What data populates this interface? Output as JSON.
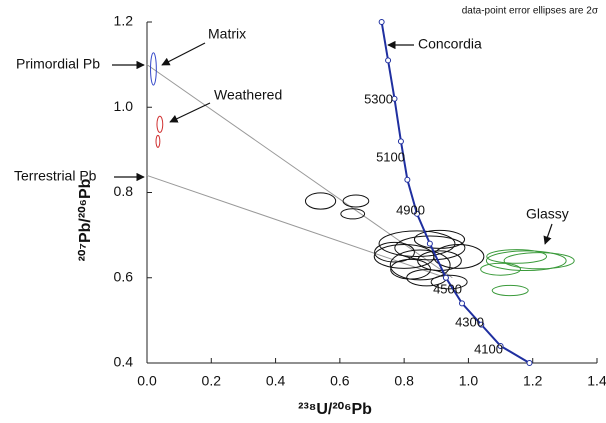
{
  "chart_data": {
    "type": "scatter",
    "note": "data-point error ellipses are 2σ",
    "x_label": "²³⁸U/²⁰⁶Pb",
    "y_label": "²⁰⁷Pb/²⁰⁶Pb",
    "xlim": [
      0,
      1.4
    ],
    "ylim": [
      0.4,
      1.2
    ],
    "xticks": [
      {
        "value": 0,
        "label": "0.0"
      },
      0.2,
      0.4,
      0.6,
      0.8,
      {
        "value": 1,
        "label": "1.0"
      },
      1.2,
      1.4
    ],
    "yticks": [
      0.4,
      0.6,
      0.8,
      {
        "value": 1,
        "label": "1.0"
      },
      1.2
    ],
    "concordia": {
      "name": "Concordia",
      "color": "#1f2fa0",
      "x": [
        0.73,
        0.75,
        0.77,
        0.79,
        0.81,
        0.84,
        0.88,
        0.93,
        0.98,
        1.04,
        1.1,
        1.19
      ],
      "y": [
        1.2,
        1.11,
        1.02,
        0.92,
        0.83,
        0.75,
        0.68,
        0.6,
        0.54,
        0.49,
        0.44,
        0.4
      ],
      "age_labels": [
        "5300",
        "5100",
        "4900",
        "4500",
        "4300",
        "4100"
      ]
    },
    "mixing_lines": [
      {
        "name": "Primordial Pb",
        "color": "#999999",
        "x": [
          0,
          0.95
        ],
        "y": [
          1.1,
          0.6
        ]
      },
      {
        "name": "Terrestrial Pb",
        "color": "#999999",
        "x": [
          0,
          0.93
        ],
        "y": [
          0.84,
          0.6
        ]
      }
    ],
    "series": [
      {
        "name": "Matrix",
        "color": "#3347c9",
        "x": [
          0.02
        ],
        "y": [
          1.09
        ],
        "x_err": [
          0.009
        ],
        "y_err": [
          0.038
        ]
      },
      {
        "name": "Weathered",
        "color": "#d03030",
        "x": [
          0.04,
          0.034
        ],
        "y": [
          0.96,
          0.92
        ],
        "x_err": [
          0.009,
          0.006
        ],
        "y_err": [
          0.019,
          0.014
        ]
      },
      {
        "name": "Glassy",
        "color": "#3a9a3a",
        "x": [
          1.18,
          1.22,
          1.15,
          1.1,
          1.13
        ],
        "y": [
          0.64,
          0.64,
          0.65,
          0.62,
          0.57
        ],
        "x_err": [
          0.124,
          0.109,
          0.093,
          0.062,
          0.056
        ],
        "y_err": [
          0.023,
          0.019,
          0.016,
          0.014,
          0.012
        ]
      },
      {
        "color": "#111111",
        "x": [
          0.54,
          0.65,
          0.64,
          0.84,
          0.88,
          0.91,
          0.8,
          0.85,
          0.82,
          0.91,
          0.97,
          0.87,
          0.94,
          0.77
        ],
        "y": [
          0.78,
          0.78,
          0.75,
          0.68,
          0.67,
          0.69,
          0.65,
          0.63,
          0.62,
          0.64,
          0.65,
          0.6,
          0.59,
          0.66
        ],
        "x_err": [
          0.047,
          0.04,
          0.037,
          0.118,
          0.109,
          0.078,
          0.093,
          0.093,
          0.062,
          0.068,
          0.078,
          0.062,
          0.056,
          0.062
        ],
        "y_err": [
          0.019,
          0.014,
          0.012,
          0.03,
          0.028,
          0.021,
          0.028,
          0.035,
          0.023,
          0.023,
          0.028,
          0.019,
          0.016,
          0.023
        ]
      }
    ]
  }
}
